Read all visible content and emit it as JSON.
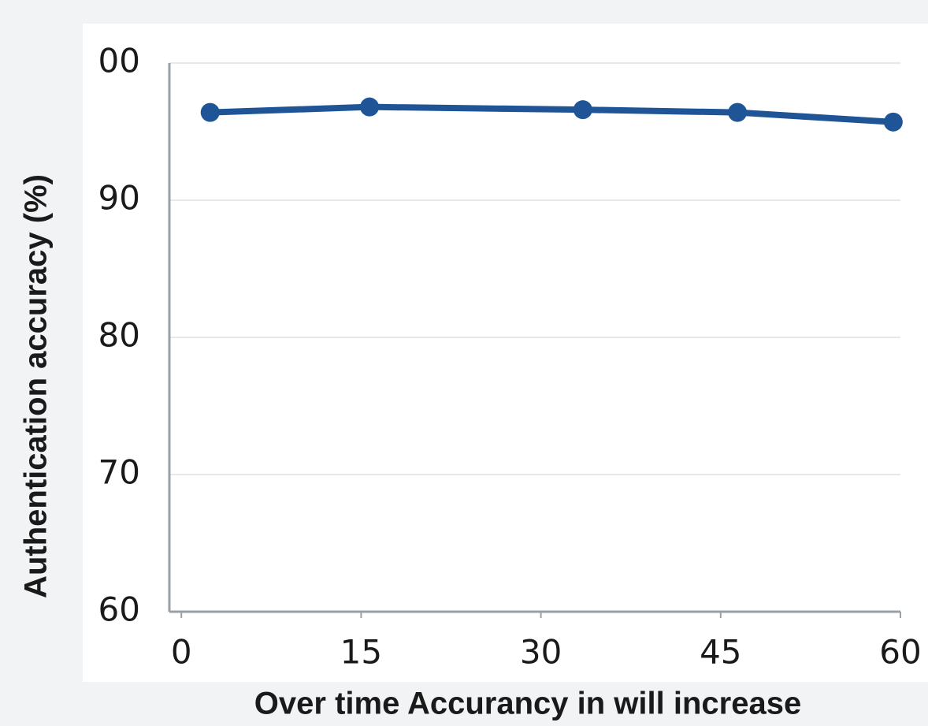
{
  "chart_data": {
    "type": "line",
    "x_label": "Over time Accurancy in will increase",
    "y_label": "Authentication accuracy (%)",
    "x": [
      2.4,
      15.7,
      33.5,
      46.4,
      59.4
    ],
    "series": [
      {
        "color": "#1f5596",
        "values": [
          96.4,
          96.8,
          96.6,
          96.4,
          95.7
        ]
      }
    ],
    "xlim": [
      -1,
      60
    ],
    "xticks": [
      0,
      15,
      30,
      45,
      60
    ],
    "ylim": [
      60,
      100
    ],
    "yticks": [
      60,
      70,
      80,
      90,
      {
        "value": 100,
        "label": "00"
      }
    ],
    "grid": true
  }
}
